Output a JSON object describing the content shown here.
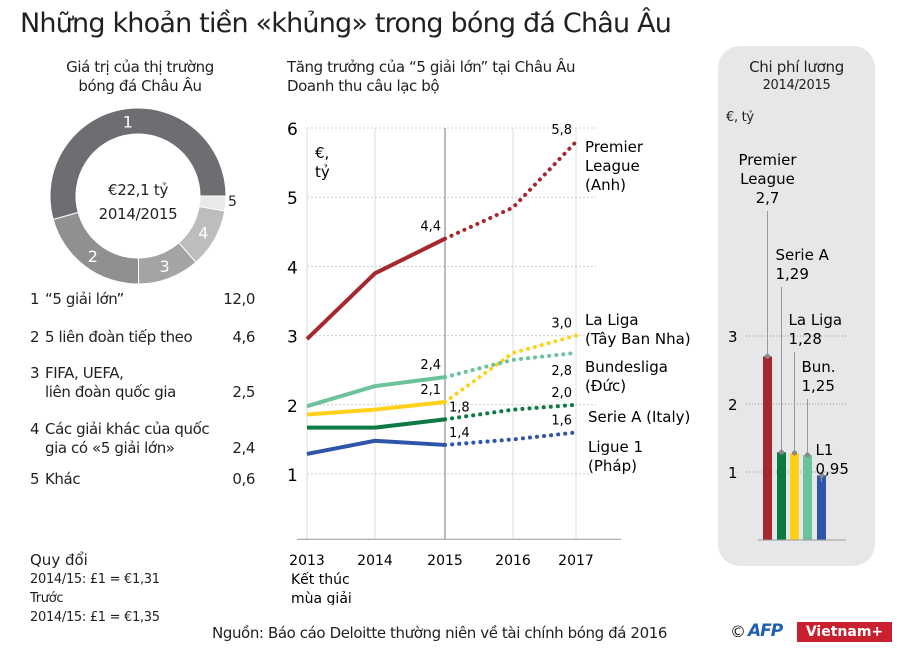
{
  "title": "Những khoản tiền «khủng» trong bóng đá Châu Âu",
  "donut": {
    "subtitle_lines": [
      "Giá trị của thị trường",
      "bóng đá Châu Âu"
    ],
    "center_value": "€22,1 tỷ",
    "center_period": "2014/2015",
    "colors": [
      "#6d6e71",
      "#8f9092",
      "#a3a4a6",
      "#bcbdbf",
      "#e9e9ea"
    ]
  },
  "legend": [
    {
      "num": "1",
      "lines": [
        "“5 giải lớn”"
      ],
      "value": "12,0"
    },
    {
      "num": "2",
      "lines": [
        "5 liên đoàn tiếp theo"
      ],
      "value": "4,6"
    },
    {
      "num": "3",
      "lines": [
        "FIFA, UEFA,",
        "liên đoàn quốc gia"
      ],
      "value": "2,5"
    },
    {
      "num": "4",
      "lines": [
        "Các giải khác của quốc",
        "gia có «5 giải lớn»"
      ],
      "value": "2,4"
    },
    {
      "num": "5",
      "lines": [
        "Khác"
      ],
      "value": "0,6"
    }
  ],
  "conversion": {
    "heading": "Quy đổi",
    "line1": "2014/15:  £1 = €1,31",
    "label2": "Trước",
    "line2": "2014/15:  £1 = €1,35"
  },
  "source": "Nguồn: Báo cáo Deloitte thường niên về tài chính bóng đá 2016",
  "logos": {
    "copyright": "©",
    "afp": "AFP",
    "vietnam": "Vietnam+"
  },
  "chart_data": [
    {
      "type": "pie",
      "title": "Giá trị của thị trường bóng đá Châu Âu",
      "labels": [
        "1",
        "2",
        "3",
        "4",
        "5"
      ],
      "values": [
        12.0,
        4.6,
        2.5,
        2.4,
        0.6
      ],
      "total": "€22,1 tỷ"
    },
    {
      "type": "line",
      "title_lines": [
        "Tăng trưởng của “5 giải lớn” tại Châu Âu",
        "Doanh thu câu lạc bộ"
      ],
      "ylabel_lines": [
        "€,",
        "tỷ"
      ],
      "xlabel_lines": [
        "Kết thúc",
        "mùa giải"
      ],
      "x": [
        "2013",
        "2014",
        "2015",
        "2016",
        "2017"
      ],
      "ylim": [
        0,
        6
      ],
      "yticks": [
        "1",
        "2",
        "3",
        "4",
        "5",
        "6"
      ],
      "projection_from": "2015",
      "series": [
        {
          "name_lines": [
            "Premier",
            "League",
            "(Anh)"
          ],
          "color": "#a4282e",
          "values": [
            2.95,
            3.9,
            4.4,
            4.85,
            5.8
          ],
          "labels": {
            "2015": "4,4",
            "2017": "5,8"
          }
        },
        {
          "name_lines": [
            "La Liga",
            "(Tây Ban Nha)"
          ],
          "color": "#ffd11a",
          "values": [
            1.86,
            1.93,
            2.04,
            2.75,
            3.0
          ],
          "labels": {
            "2015": "2,1",
            "2017": "3,0"
          }
        },
        {
          "name_lines": [
            "Bundesliga",
            "(Đức)"
          ],
          "color": "#6cc29b",
          "values": [
            1.98,
            2.27,
            2.4,
            2.65,
            2.75
          ],
          "labels": {
            "2015": "2,4",
            "2017": "2,8"
          }
        },
        {
          "name_lines": [
            "Serie A (Italy)"
          ],
          "color": "#0d7a45",
          "values": [
            1.67,
            1.67,
            1.79,
            1.93,
            2.0
          ],
          "labels": {
            "2015": "1,8",
            "2017": "2,0"
          }
        },
        {
          "name_lines": [
            "Ligue 1",
            "(Pháp)"
          ],
          "color": "#2e55a8",
          "values": [
            1.29,
            1.48,
            1.42,
            1.5,
            1.6
          ],
          "labels": {
            "2015": "1,4",
            "2017": "1,6"
          }
        }
      ]
    },
    {
      "type": "bar",
      "title": "Chi phí lương",
      "subtitle": "2014/2015",
      "ylabel": "€, tỷ",
      "yticks": [
        "1",
        "2",
        "3"
      ],
      "ylim": [
        0,
        3.5
      ],
      "categories": [
        {
          "label_lines": [
            "Premier",
            "League"
          ],
          "value_label": "2,7"
        },
        {
          "label_lines": [
            "Serie A"
          ],
          "value_label": "1,29"
        },
        {
          "label_lines": [
            "La Liga"
          ],
          "value_label": "1,28"
        },
        {
          "label_lines": [
            "Bun."
          ],
          "value_label": "1,25"
        },
        {
          "label_lines": [
            "L1"
          ],
          "value_label": "0,95"
        }
      ],
      "values": [
        2.7,
        1.29,
        1.28,
        1.25,
        0.95
      ],
      "colors": [
        "#a4282e",
        "#0d7a45",
        "#ffd11a",
        "#6cc29b",
        "#2e55a8"
      ]
    }
  ]
}
